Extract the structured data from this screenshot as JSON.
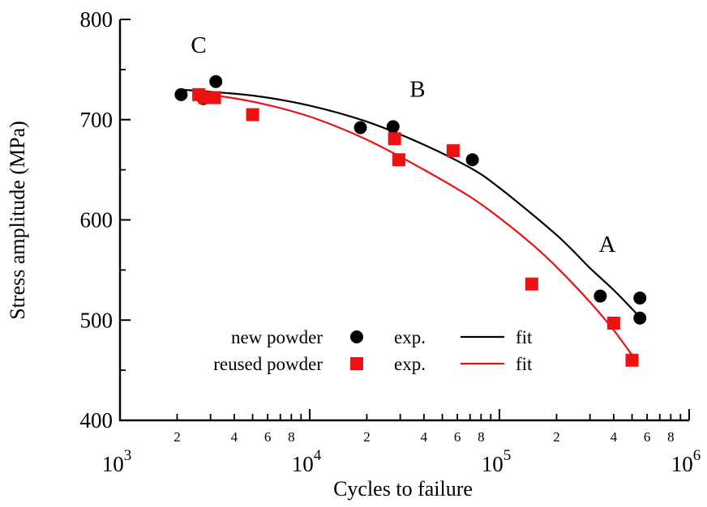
{
  "chart_data": {
    "type": "scatter",
    "title": "",
    "xlabel": "Cycles to failure",
    "ylabel": "Stress amplitude (MPa)",
    "x_scale": "log",
    "xlim": [
      1000,
      1000000
    ],
    "ylim": [
      400,
      800
    ],
    "grid": false,
    "legend_position": "bottom-center",
    "x_major_ticks": [
      {
        "value": 1000,
        "base": "10",
        "exp": "3"
      },
      {
        "value": 10000,
        "base": "10",
        "exp": "4"
      },
      {
        "value": 100000,
        "base": "10",
        "exp": "5"
      },
      {
        "value": 1000000,
        "base": "10",
        "exp": "6"
      }
    ],
    "x_minor_labels": [
      "2",
      "4",
      "6",
      "8"
    ],
    "y_ticks": [
      {
        "value": 400,
        "label": "400"
      },
      {
        "value": 500,
        "label": "500"
      },
      {
        "value": 600,
        "label": "600"
      },
      {
        "value": 700,
        "label": "700"
      },
      {
        "value": 800,
        "label": "800"
      }
    ],
    "annotations": [
      {
        "text": "C",
        "x": 2600,
        "y": 767
      },
      {
        "text": "B",
        "x": 37000,
        "y": 723
      },
      {
        "text": "A",
        "x": 370000,
        "y": 568
      }
    ],
    "series": [
      {
        "name": "new powder",
        "kind": "exp.",
        "marker": "circle",
        "color": "#000000",
        "points": [
          {
            "x": 2100,
            "y": 725
          },
          {
            "x": 2750,
            "y": 721
          },
          {
            "x": 3200,
            "y": 738
          },
          {
            "x": 18500,
            "y": 692
          },
          {
            "x": 27500,
            "y": 693
          },
          {
            "x": 72000,
            "y": 660
          },
          {
            "x": 340000,
            "y": 524
          },
          {
            "x": 550000,
            "y": 522
          },
          {
            "x": 550000,
            "y": 502
          }
        ]
      },
      {
        "name": "reused powder",
        "kind": "exp.",
        "marker": "square",
        "color": "#ee1111",
        "points": [
          {
            "x": 2600,
            "y": 725
          },
          {
            "x": 2800,
            "y": 722
          },
          {
            "x": 3150,
            "y": 722
          },
          {
            "x": 5000,
            "y": 705
          },
          {
            "x": 28000,
            "y": 681
          },
          {
            "x": 29500,
            "y": 660
          },
          {
            "x": 57000,
            "y": 669
          },
          {
            "x": 148000,
            "y": 536
          },
          {
            "x": 400000,
            "y": 497
          },
          {
            "x": 500000,
            "y": 460
          }
        ]
      }
    ],
    "fits": [
      {
        "name": "new powder",
        "kind": "fit",
        "color": "#000000",
        "points": [
          {
            "x": 2100,
            "y": 730
          },
          {
            "x": 5000,
            "y": 724
          },
          {
            "x": 10000,
            "y": 714
          },
          {
            "x": 20000,
            "y": 698
          },
          {
            "x": 40000,
            "y": 675
          },
          {
            "x": 70000,
            "y": 652
          },
          {
            "x": 100000,
            "y": 632
          },
          {
            "x": 200000,
            "y": 585
          },
          {
            "x": 300000,
            "y": 552
          },
          {
            "x": 400000,
            "y": 530
          },
          {
            "x": 550000,
            "y": 503
          }
        ]
      },
      {
        "name": "reused powder",
        "kind": "fit",
        "color": "#ee1111",
        "points": [
          {
            "x": 2500,
            "y": 727
          },
          {
            "x": 5000,
            "y": 718
          },
          {
            "x": 10000,
            "y": 703
          },
          {
            "x": 20000,
            "y": 680
          },
          {
            "x": 40000,
            "y": 650
          },
          {
            "x": 70000,
            "y": 623
          },
          {
            "x": 100000,
            "y": 602
          },
          {
            "x": 150000,
            "y": 575
          },
          {
            "x": 200000,
            "y": 553
          },
          {
            "x": 300000,
            "y": 518
          },
          {
            "x": 400000,
            "y": 490
          },
          {
            "x": 500000,
            "y": 465
          }
        ]
      }
    ],
    "legend": {
      "rows": [
        {
          "series_label": "new powder",
          "exp_label": "exp.",
          "fit_label": "fit",
          "marker": "circle",
          "color": "#000000"
        },
        {
          "series_label": "reused powder",
          "exp_label": "exp.",
          "fit_label": "fit",
          "marker": "square",
          "color": "#ee1111"
        }
      ]
    }
  }
}
